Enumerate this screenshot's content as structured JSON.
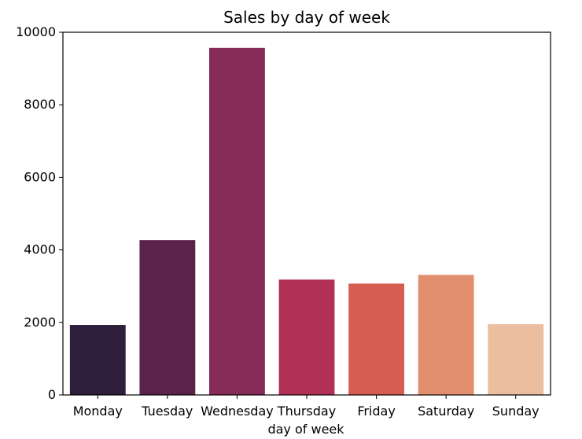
{
  "chart_data": {
    "type": "bar",
    "title": "Sales by day of week",
    "xlabel": "day of week",
    "ylabel": "",
    "categories": [
      "Monday",
      "Tuesday",
      "Wednesday",
      "Thursday",
      "Friday",
      "Saturday",
      "Sunday"
    ],
    "values": [
      1930,
      4270,
      9570,
      3180,
      3070,
      3310,
      1950
    ],
    "colors": [
      "#2e1e3b",
      "#5a2349",
      "#872b59",
      "#b22f56",
      "#d85d51",
      "#e28f6f",
      "#ebbea0"
    ],
    "ylim": [
      0,
      10000
    ],
    "yticks": [
      0,
      2000,
      4000,
      6000,
      8000,
      10000
    ],
    "grid": false,
    "legend": "none"
  }
}
